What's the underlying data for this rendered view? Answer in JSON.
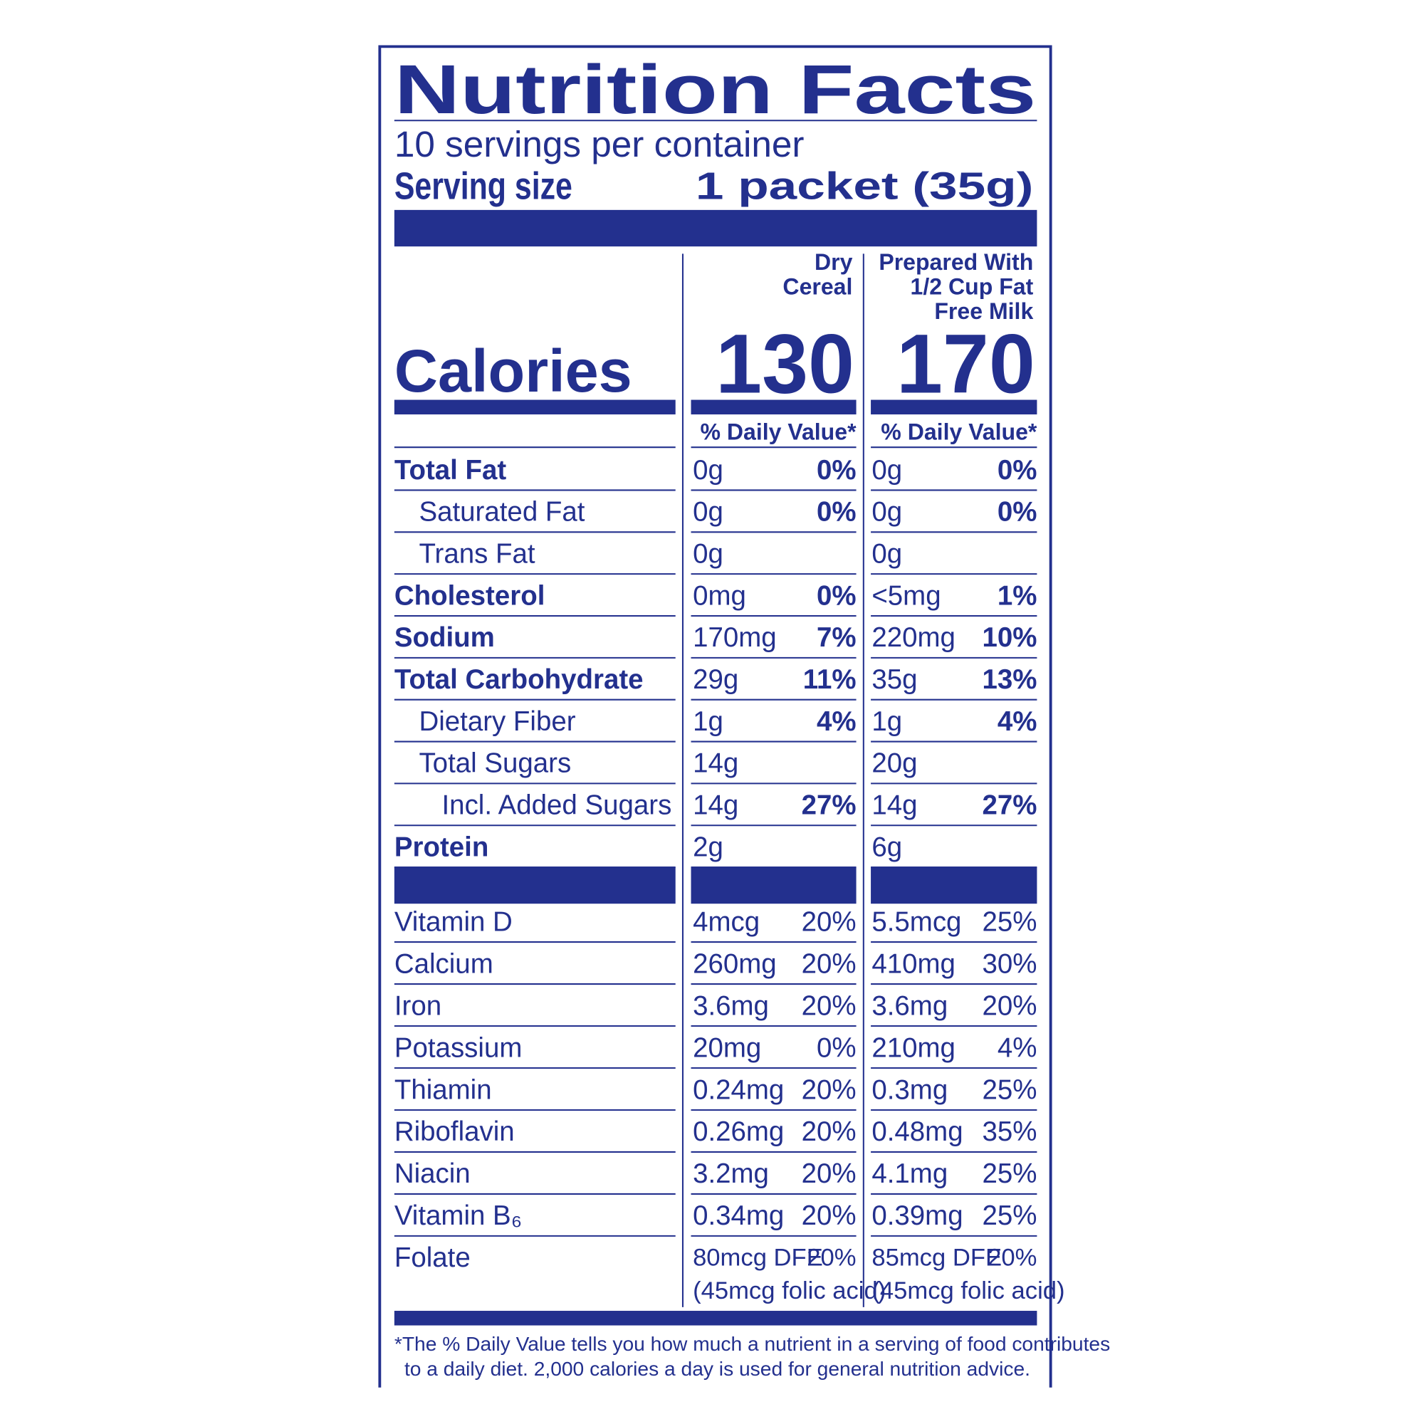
{
  "header": {
    "title": "Nutrition Facts",
    "servings": "10 servings per container",
    "serving_size_label": "Serving size",
    "serving_size": "1 packet (35g)"
  },
  "calories_label": "Calories",
  "columns": [
    {
      "heading": [
        "Dry",
        "Cereal"
      ],
      "calories": "130",
      "daily_value_heading": "% Daily Value*"
    },
    {
      "heading": [
        "Prepared With",
        "1/2 Cup Fat",
        "Free Milk"
      ],
      "calories": "170",
      "daily_value_heading": "% Daily Value*"
    }
  ],
  "nutrients": [
    {
      "name": "Total Fat",
      "bold": true,
      "indent": 0,
      "values": [
        [
          "0g",
          "0%"
        ],
        [
          "0g",
          "0%"
        ]
      ]
    },
    {
      "name": "Saturated Fat",
      "bold": false,
      "indent": 1,
      "values": [
        [
          "0g",
          "0%"
        ],
        [
          "0g",
          "0%"
        ]
      ]
    },
    {
      "name": "Trans Fat",
      "bold": false,
      "indent": 1,
      "values": [
        [
          "0g"
        ],
        [
          "0g"
        ]
      ]
    },
    {
      "name": "Cholesterol",
      "bold": true,
      "indent": 0,
      "values": [
        [
          "0mg",
          "0%"
        ],
        [
          "<5mg",
          "1%"
        ]
      ]
    },
    {
      "name": "Sodium",
      "bold": true,
      "indent": 0,
      "values": [
        [
          "170mg",
          "7%"
        ],
        [
          "220mg",
          "10%"
        ]
      ]
    },
    {
      "name": "Total Carbohydrate",
      "bold": true,
      "indent": 0,
      "values": [
        [
          "29g",
          "11%"
        ],
        [
          "35g",
          "13%"
        ]
      ]
    },
    {
      "name": "Dietary Fiber",
      "bold": false,
      "indent": 1,
      "values": [
        [
          "1g",
          "4%"
        ],
        [
          "1g",
          "4%"
        ]
      ]
    },
    {
      "name": "Total Sugars",
      "bold": false,
      "indent": 1,
      "values": [
        [
          "14g"
        ],
        [
          "20g"
        ]
      ]
    },
    {
      "name": "Incl. Added Sugars",
      "bold": false,
      "indent": 2,
      "values": [
        [
          "14g",
          "27%"
        ],
        [
          "14g",
          "27%"
        ]
      ]
    },
    {
      "name": "Protein",
      "bold": true,
      "indent": 0,
      "values": [
        [
          "2g"
        ],
        [
          "6g"
        ]
      ]
    }
  ],
  "vitamins": [
    {
      "name": "Vitamin D",
      "values": [
        [
          "4mcg",
          "20%"
        ],
        [
          "5.5mcg",
          "25%"
        ]
      ]
    },
    {
      "name": "Calcium",
      "values": [
        [
          "260mg",
          "20%"
        ],
        [
          "410mg",
          "30%"
        ]
      ]
    },
    {
      "name": "Iron",
      "values": [
        [
          "3.6mg",
          "20%"
        ],
        [
          "3.6mg",
          "20%"
        ]
      ]
    },
    {
      "name": "Potassium",
      "values": [
        [
          "20mg",
          "0%"
        ],
        [
          "210mg",
          "4%"
        ]
      ]
    },
    {
      "name": "Thiamin",
      "values": [
        [
          "0.24mg",
          "20%"
        ],
        [
          "0.3mg",
          "25%"
        ]
      ]
    },
    {
      "name": "Riboflavin",
      "values": [
        [
          "0.26mg",
          "20%"
        ],
        [
          "0.48mg",
          "35%"
        ]
      ]
    },
    {
      "name": "Niacin",
      "values": [
        [
          "3.2mg",
          "20%"
        ],
        [
          "4.1mg",
          "25%"
        ]
      ]
    },
    {
      "name": "Vitamin B₆",
      "values": [
        [
          "0.34mg",
          "20%"
        ],
        [
          "0.39mg",
          "25%"
        ]
      ]
    },
    {
      "name": "Folate",
      "values": [
        [
          "80mcg DFE",
          "20%",
          "(45mcg folic acid)"
        ],
        [
          "85mcg DFE",
          "20%",
          "(45mcg folic acid)"
        ]
      ]
    }
  ],
  "footnote": [
    "*The % Daily Value tells you how much a nutrient in a serving of food contributes",
    "to a daily diet. 2,000 calories a day is used for general nutrition advice."
  ]
}
